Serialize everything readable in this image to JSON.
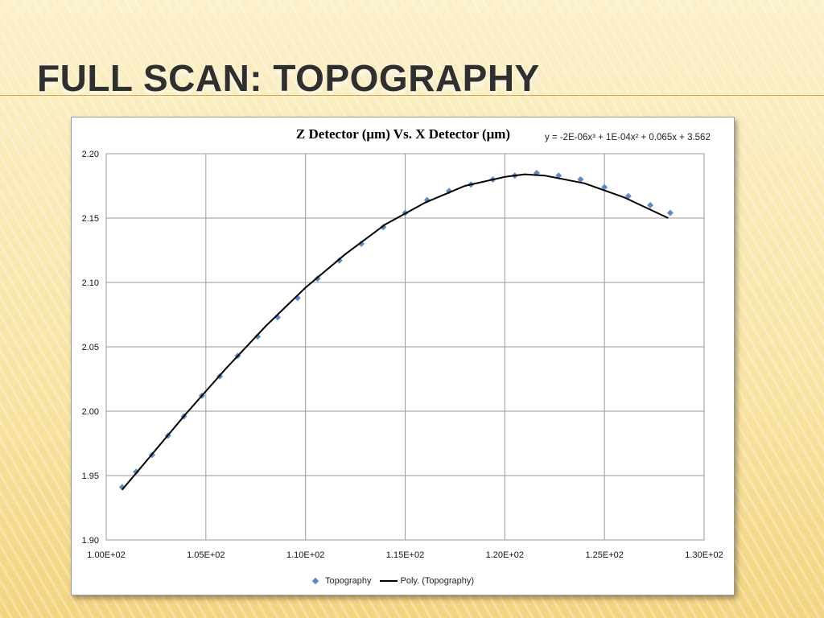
{
  "slide": {
    "title": "Full scan: Topography"
  },
  "chart_data": {
    "type": "scatter",
    "title": "Z Detector (μm) Vs. X Detector (μm)",
    "trendline_equation": "y = -2E-06x³ + 1E-04x² + 0.065x + 3.562",
    "xlabel": "",
    "ylabel": "",
    "xlim": [
      100,
      130
    ],
    "ylim": [
      1.9,
      2.2
    ],
    "x_ticks": [
      100,
      105,
      110,
      115,
      120,
      125,
      130
    ],
    "x_tick_labels": [
      "1.00E+02",
      "1.05E+02",
      "1.10E+02",
      "1.15E+02",
      "1.20E+02",
      "1.25E+02",
      "1.30E+02"
    ],
    "y_ticks": [
      1.9,
      1.95,
      2.0,
      2.05,
      2.1,
      2.15,
      2.2
    ],
    "y_tick_labels": [
      "1.90",
      "1.95",
      "2.00",
      "2.05",
      "2.10",
      "2.15",
      "2.20"
    ],
    "grid": true,
    "legend_position": "bottom",
    "series": [
      {
        "name": "Topography",
        "kind": "markers",
        "color": "#5b8cc8",
        "x": [
          100.8,
          101.5,
          102.3,
          103.1,
          103.9,
          104.8,
          105.7,
          106.6,
          107.6,
          108.6,
          109.6,
          110.6,
          111.7,
          112.8,
          113.9,
          115.0,
          116.1,
          117.2,
          118.3,
          119.4,
          120.5,
          121.6,
          122.7,
          123.8,
          125.0,
          126.2,
          127.3,
          128.3
        ],
        "y": [
          1.941,
          1.953,
          1.966,
          1.981,
          1.996,
          2.012,
          2.027,
          2.043,
          2.058,
          2.073,
          2.088,
          2.103,
          2.117,
          2.13,
          2.143,
          2.154,
          2.164,
          2.171,
          2.176,
          2.18,
          2.183,
          2.185,
          2.183,
          2.18,
          2.174,
          2.167,
          2.16,
          2.154
        ]
      },
      {
        "name": "Poly. (Topography)",
        "kind": "trendline",
        "color": "#000000",
        "x": [
          100.8,
          102.0,
          104.0,
          106.0,
          108.0,
          110.0,
          112.0,
          114.0,
          116.0,
          118.0,
          120.0,
          121.0,
          122.0,
          124.0,
          126.0,
          128.2
        ],
        "y": [
          1.939,
          1.961,
          1.998,
          2.033,
          2.066,
          2.096,
          2.122,
          2.145,
          2.162,
          2.175,
          2.182,
          2.184,
          2.183,
          2.177,
          2.166,
          2.15
        ]
      }
    ]
  }
}
